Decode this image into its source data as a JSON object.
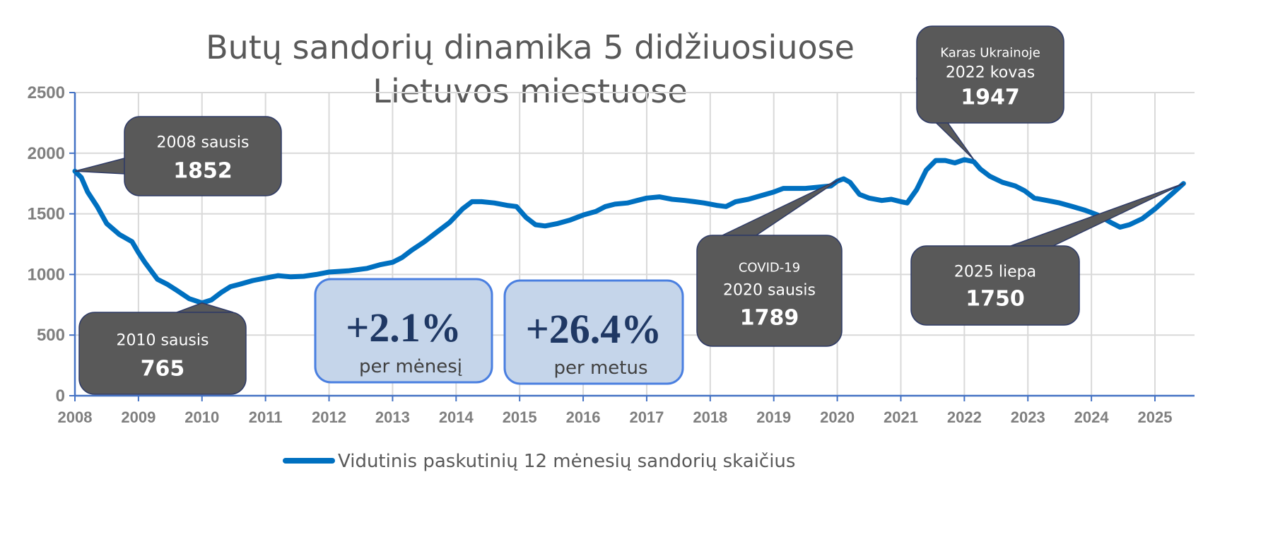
{
  "chart_data": {
    "type": "line",
    "title": "Butų sandorių dinamika 5 didžiuosiuose Lietuvos miestuose",
    "ylim": [
      0,
      2500
    ],
    "yticks": [
      0,
      500,
      1000,
      1500,
      2000,
      2500
    ],
    "xticks": [
      "2008",
      "2009",
      "2010",
      "2011",
      "2012",
      "2013",
      "2014",
      "2015",
      "2016",
      "2017",
      "2018",
      "2019",
      "2020",
      "2021",
      "2022",
      "2023",
      "2024",
      "2025"
    ],
    "grid": true,
    "legend_position": "bottom",
    "series": [
      {
        "name": "Vidutinis paskutinių 12 mėnesių sandorių skaičius",
        "color": "#0070c0",
        "x": [
          2008.0,
          2008.1,
          2008.2,
          2008.35,
          2008.5,
          2008.7,
          2008.9,
          2009.0,
          2009.1,
          2009.3,
          2009.45,
          2009.6,
          2009.8,
          2010.0,
          2010.15,
          2010.3,
          2010.45,
          2010.6,
          2010.8,
          2011.0,
          2011.2,
          2011.4,
          2011.6,
          2011.8,
          2012.0,
          2012.3,
          2012.6,
          2012.8,
          2013.0,
          2013.15,
          2013.3,
          2013.5,
          2013.7,
          2013.9,
          2014.1,
          2014.25,
          2014.4,
          2014.6,
          2014.8,
          2014.95,
          2015.1,
          2015.25,
          2015.4,
          2015.6,
          2015.8,
          2016.0,
          2016.2,
          2016.35,
          2016.5,
          2016.7,
          2016.85,
          2017.0,
          2017.2,
          2017.4,
          2017.6,
          2017.75,
          2017.9,
          2018.1,
          2018.25,
          2018.4,
          2018.6,
          2018.8,
          2019.0,
          2019.15,
          2019.3,
          2019.5,
          2019.7,
          2019.9,
          2020.0,
          2020.1,
          2020.2,
          2020.35,
          2020.5,
          2020.7,
          2020.85,
          2021.0,
          2021.1,
          2021.25,
          2021.4,
          2021.55,
          2021.7,
          2021.85,
          2022.0,
          2022.15,
          2022.25,
          2022.4,
          2022.6,
          2022.8,
          2022.95,
          2023.1,
          2023.3,
          2023.5,
          2023.7,
          2023.9,
          2024.1,
          2024.3,
          2024.45,
          2024.6,
          2024.8,
          2025.0,
          2025.15,
          2025.3,
          2025.45
        ],
        "values": [
          1852,
          1800,
          1680,
          1560,
          1420,
          1330,
          1270,
          1180,
          1100,
          960,
          920,
          870,
          800,
          765,
          790,
          850,
          900,
          920,
          950,
          970,
          990,
          980,
          985,
          1000,
          1020,
          1030,
          1050,
          1080,
          1100,
          1140,
          1200,
          1270,
          1350,
          1430,
          1540,
          1600,
          1600,
          1590,
          1570,
          1560,
          1470,
          1410,
          1400,
          1420,
          1450,
          1490,
          1520,
          1560,
          1580,
          1590,
          1610,
          1630,
          1640,
          1620,
          1610,
          1600,
          1590,
          1570,
          1560,
          1600,
          1620,
          1650,
          1680,
          1710,
          1710,
          1710,
          1720,
          1730,
          1770,
          1789,
          1760,
          1660,
          1630,
          1610,
          1620,
          1600,
          1590,
          1700,
          1860,
          1940,
          1940,
          1920,
          1947,
          1930,
          1870,
          1810,
          1760,
          1730,
          1690,
          1630,
          1610,
          1590,
          1560,
          1530,
          1490,
          1430,
          1390,
          1410,
          1460,
          1540,
          1610,
          1680,
          1750
        ]
      }
    ],
    "annotations": [
      {
        "id": "a2008",
        "line1": "2008 sausis",
        "value": "1852"
      },
      {
        "id": "a2010",
        "line1": "2010 sausis",
        "value": "765"
      },
      {
        "id": "a2020",
        "line0": "COVID-19",
        "line1": "2020 sausis",
        "value": "1789"
      },
      {
        "id": "a2022",
        "line0": "Karas Ukrainoje",
        "line1": "2022 kovas",
        "value": "1947"
      },
      {
        "id": "a2025",
        "line1": "2025 liepa",
        "value": "1750"
      }
    ],
    "badges": [
      {
        "big": "+2.1%",
        "small": "per mėnesį"
      },
      {
        "big": "+26.4%",
        "small": "per metus"
      }
    ]
  },
  "colors": {
    "line": "#0070c0",
    "axis": "#4472c4",
    "grid": "#d9d9d9",
    "callout_fill": "#595959",
    "callout_stroke": "#2f3b66",
    "badge_fill": "#c5d5ea",
    "badge_stroke": "#4a7fe0"
  }
}
